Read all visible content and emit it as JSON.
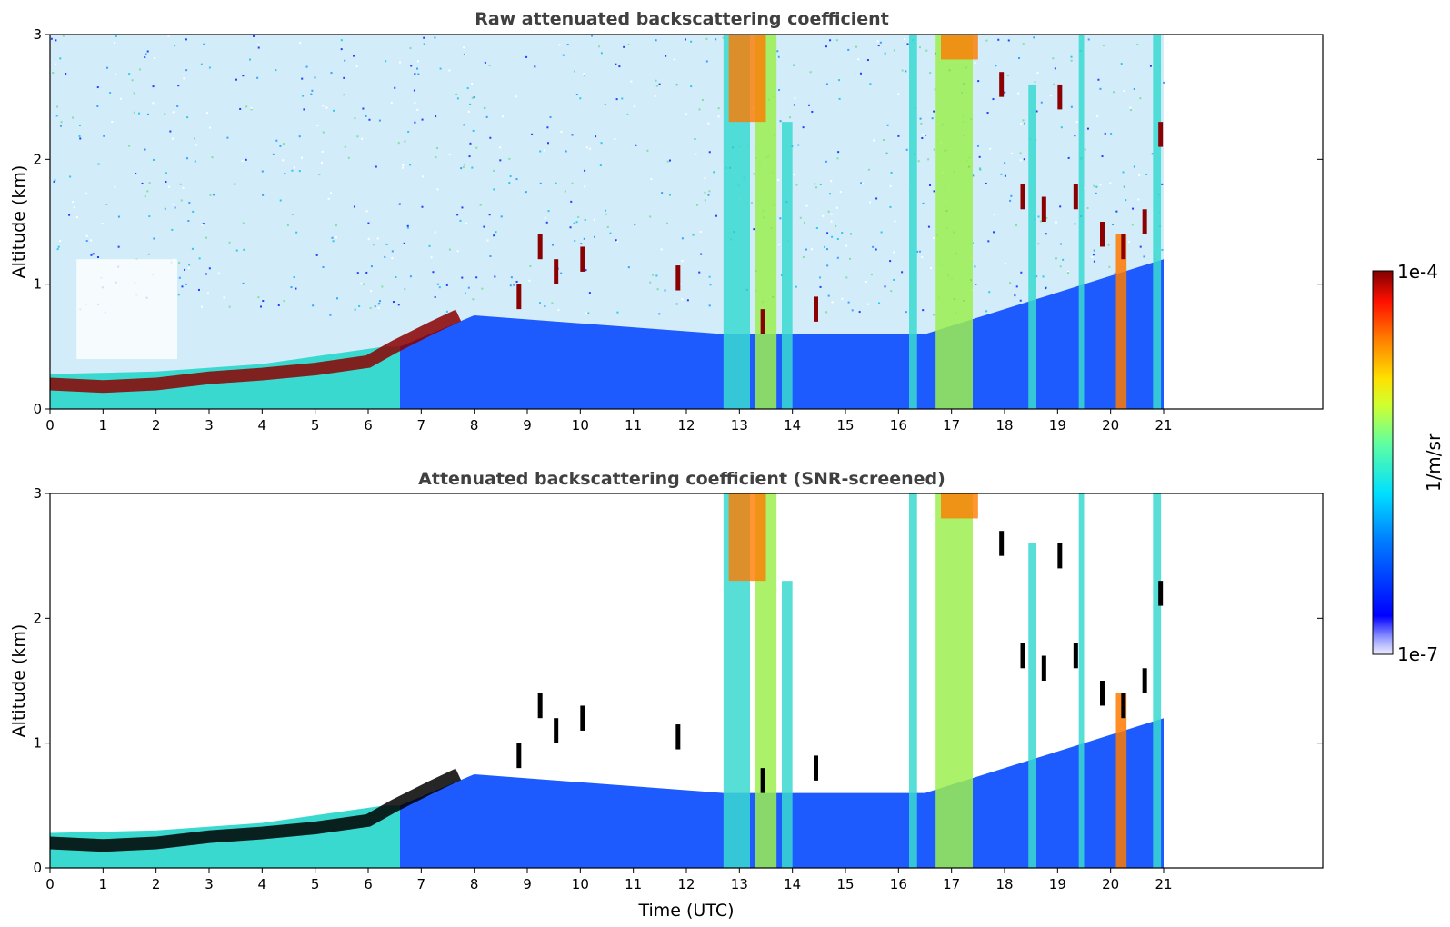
{
  "chart_data": [
    {
      "type": "heatmap",
      "title": "Raw attenuated backscattering coefficient",
      "xlabel": "",
      "ylabel": "Altitude (km)",
      "xlim": [
        0,
        24
      ],
      "ylim": [
        0,
        3
      ],
      "x_ticks": [
        0,
        1,
        2,
        3,
        4,
        5,
        6,
        7,
        8,
        9,
        10,
        11,
        12,
        13,
        14,
        15,
        16,
        17,
        18,
        19,
        20,
        21
      ],
      "y_ticks": [
        0,
        1,
        2,
        3
      ],
      "data_end_time": 21,
      "color_scale": "log",
      "grid": false
    },
    {
      "type": "heatmap",
      "title": "Attenuated backscattering coefficient (SNR-screened)",
      "xlabel": "Time (UTC)",
      "ylabel": "Altitude (km)",
      "xlim": [
        0,
        24
      ],
      "ylim": [
        0,
        3
      ],
      "x_ticks": [
        0,
        1,
        2,
        3,
        4,
        5,
        6,
        7,
        8,
        9,
        10,
        11,
        12,
        13,
        14,
        15,
        16,
        17,
        18,
        19,
        20,
        21
      ],
      "y_ticks": [
        0,
        1,
        2,
        3
      ],
      "data_end_time": 21,
      "color_scale": "log",
      "grid": false
    }
  ],
  "colorbar": {
    "max_label": "1e-4",
    "min_label": "1e-7",
    "unit_label": "1/m/sr",
    "colormap": "jet"
  },
  "colors": {
    "boundary_layer": "#8b0000",
    "aerosol_low": "#1e5bff",
    "aerosol_mid": "#3ad9d0",
    "plume": "#9cf050",
    "cloud": "#ff7a00"
  }
}
